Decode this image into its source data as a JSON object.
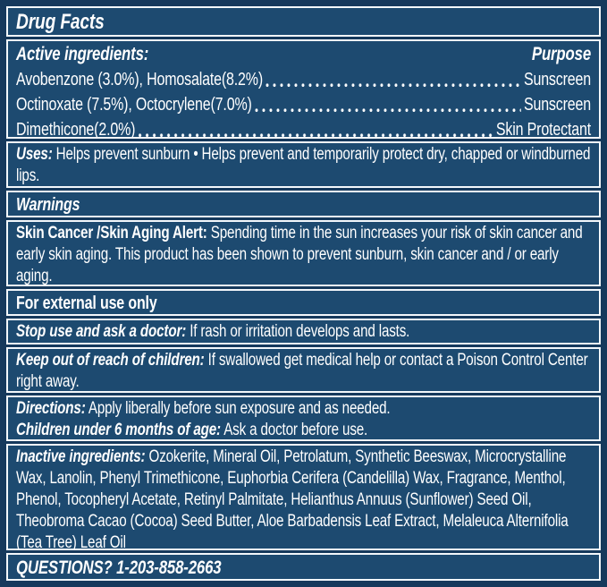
{
  "colors": {
    "panel_blue": "#1D4A70",
    "frame_navy": "#16395C",
    "rule_white": "#F3F7FB",
    "text_white": "#FFFFFF"
  },
  "header": {
    "title": "Drug Facts"
  },
  "active": {
    "heading": "Active ingredients:",
    "purpose_heading": "Purpose",
    "rows": [
      {
        "name": "Avobenzone (3.0%), Homosalate(8.2%)",
        "purpose": "Sunscreen"
      },
      {
        "name": "Octinoxate (7.5%), Octocrylene(7.0%)",
        "purpose": "Sunscreen"
      },
      {
        "name": "Dimethicone(2.0%)",
        "purpose": "Skin Protectant"
      }
    ]
  },
  "uses": {
    "lead": "Uses:",
    "body": "Helps prevent sunburn • Helps prevent and temporarily protect dry, chapped or windburned lips."
  },
  "warnings": {
    "heading": "Warnings"
  },
  "skin_alert": {
    "lead": "Skin Cancer /Skin Aging Alert:",
    "body": "Spending time in the sun increases your risk of skin cancer and early skin aging. This product has been shown to prevent sunburn, skin cancer and / or early aging."
  },
  "external_use": {
    "heading": "For external use only"
  },
  "stop_use": {
    "lead": "Stop use and ask a doctor:",
    "body": "If rash or irritation develops and lasts."
  },
  "keep_out": {
    "lead": "Keep out of reach of children:",
    "body": "If swallowed get medical help or contact a Poison Control Center right away."
  },
  "directions": {
    "lead": "Directions:",
    "body": "Apply liberally before sun exposure and as needed."
  },
  "children": {
    "lead": "Children under 6 months of age:",
    "body": "Ask a doctor before use."
  },
  "inactive": {
    "lead": "Inactive ingredients:",
    "body": "Ozokerite, Mineral Oil, Petrolatum, Synthetic Beeswax, Microcrystalline Wax, Lanolin, Phenyl Trimethicone, Euphorbia Cerifera (Candelilla) Wax, Fragrance, Menthol, Phenol, Tocopheryl Acetate, Retinyl Palmitate, Helianthus Annuus (Sunflower) Seed Oil, Theobroma Cacao (Cocoa) Seed Butter, Aloe Barbadensis Leaf Extract, Melaleuca Alternifolia (Tea Tree) Leaf Oil"
  },
  "questions": {
    "text": "QUESTIONS? 1-203-858-2663"
  }
}
